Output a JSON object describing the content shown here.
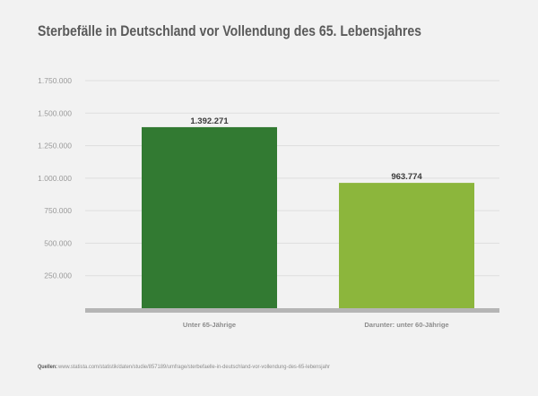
{
  "chart_data": {
    "type": "bar",
    "title": "Sterbefälle in Deutschland vor Vollendung des 65. Lebensjahres",
    "xlabel": "",
    "ylabel": "",
    "categories": [
      "Unter 65-Jährige",
      "Darunter: unter 60-Jährige"
    ],
    "values": [
      1392271,
      963774
    ],
    "value_labels": [
      "1.392.271",
      "963.774"
    ],
    "ylim": [
      0,
      1750000
    ],
    "yticks": [
      250000,
      500000,
      750000,
      1000000,
      1250000,
      1500000,
      1750000
    ],
    "ytick_labels": [
      "250.000",
      "500.000",
      "750.000",
      "1.000.000",
      "1.250.000",
      "1.500.000",
      "1.750.000"
    ],
    "grid": true,
    "legend": "none",
    "colors": [
      "#327a32",
      "#8cb63c"
    ]
  },
  "colors": {
    "background": "#f2f2f2",
    "baseline": "#b5b5b5"
  },
  "source": {
    "label": "Quellen:",
    "text": "www.statista.com/statistik/daten/studie/857189/umfrage/sterbefaelle-in-deutschland-vor-vollendung-des-65-lebensjahr"
  }
}
